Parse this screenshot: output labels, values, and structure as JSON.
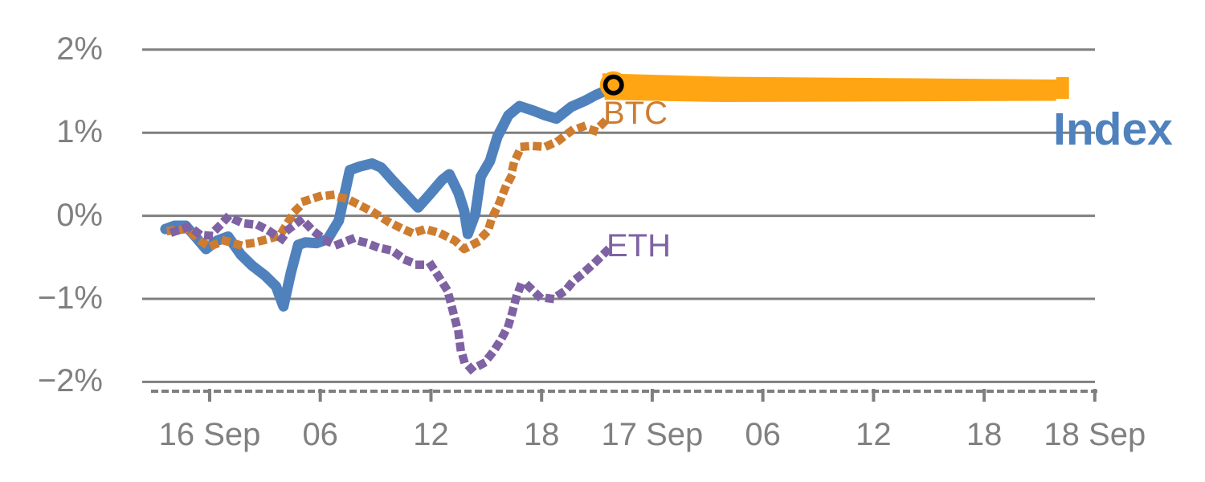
{
  "chart_data": {
    "type": "line",
    "title": "",
    "description": "Intraday percentage change of BTC, ETH and a crypto Index from late 15 Sep to 18 Sep; the Index last value is extended forward as a thick orange projection band ending near 18 Sep.",
    "x_axis": {
      "unit": "hours from 16 Sep 00:00",
      "tick_hours": [
        0,
        6,
        12,
        18,
        24,
        30,
        36,
        42,
        48
      ],
      "tick_labels": [
        "16 Sep",
        "06",
        "12",
        "18",
        "17 Sep",
        "06",
        "12",
        "18",
        "18 Sep"
      ],
      "axis_style": "dashed minor ticks with major tick marks"
    },
    "y_axis": {
      "unit": "percent",
      "tick_values": [
        2,
        1,
        0,
        -1,
        -2
      ],
      "tick_labels": [
        "2%",
        "1%",
        "0%",
        "−1%",
        "−2%"
      ],
      "range": [
        -2,
        2
      ],
      "grid": true
    },
    "axis_color": "#7F7F7F",
    "text_color": "#808080",
    "series": [
      {
        "name": "Index",
        "color": "#4F81BD",
        "line_style": "solid",
        "points": [
          [
            -2.4,
            -0.16
          ],
          [
            -1.9,
            -0.12
          ],
          [
            -1.3,
            -0.12
          ],
          [
            -0.7,
            -0.27
          ],
          [
            -0.2,
            -0.4
          ],
          [
            0.4,
            -0.3
          ],
          [
            1.0,
            -0.25
          ],
          [
            1.7,
            -0.47
          ],
          [
            2.3,
            -0.6
          ],
          [
            3.0,
            -0.72
          ],
          [
            3.6,
            -0.85
          ],
          [
            4.0,
            -1.09
          ],
          [
            4.4,
            -0.69
          ],
          [
            4.8,
            -0.35
          ],
          [
            5.2,
            -0.32
          ],
          [
            5.8,
            -0.33
          ],
          [
            6.4,
            -0.28
          ],
          [
            7.0,
            -0.06
          ],
          [
            7.6,
            0.55
          ],
          [
            8.1,
            0.59
          ],
          [
            8.8,
            0.63
          ],
          [
            9.3,
            0.58
          ],
          [
            9.9,
            0.43
          ],
          [
            10.5,
            0.29
          ],
          [
            11.0,
            0.17
          ],
          [
            11.3,
            0.1
          ],
          [
            11.9,
            0.25
          ],
          [
            12.6,
            0.43
          ],
          [
            13.0,
            0.5
          ],
          [
            13.5,
            0.27
          ],
          [
            13.8,
            0.06
          ],
          [
            14.0,
            -0.22
          ],
          [
            14.4,
            0.02
          ],
          [
            14.7,
            0.47
          ],
          [
            15.2,
            0.66
          ],
          [
            15.6,
            0.95
          ],
          [
            16.2,
            1.21
          ],
          [
            16.8,
            1.32
          ],
          [
            17.5,
            1.27
          ],
          [
            18.2,
            1.21
          ],
          [
            18.8,
            1.17
          ],
          [
            19.6,
            1.31
          ],
          [
            20.4,
            1.39
          ],
          [
            20.9,
            1.45
          ],
          [
            21.5,
            1.51
          ],
          [
            21.9,
            1.57
          ]
        ]
      },
      {
        "name": "BTC",
        "color": "#CE7C30",
        "line_style": "dotted",
        "points": [
          [
            -2.1,
            -0.18
          ],
          [
            -1.2,
            -0.16
          ],
          [
            -0.6,
            -0.29
          ],
          [
            0.0,
            -0.37
          ],
          [
            0.8,
            -0.3
          ],
          [
            1.6,
            -0.35
          ],
          [
            2.3,
            -0.33
          ],
          [
            3.0,
            -0.29
          ],
          [
            3.8,
            -0.24
          ],
          [
            4.6,
            0.05
          ],
          [
            5.2,
            0.18
          ],
          [
            5.9,
            0.23
          ],
          [
            6.6,
            0.25
          ],
          [
            7.5,
            0.2
          ],
          [
            8.2,
            0.12
          ],
          [
            8.9,
            0.04
          ],
          [
            9.6,
            -0.06
          ],
          [
            10.3,
            -0.14
          ],
          [
            11.0,
            -0.21
          ],
          [
            11.7,
            -0.16
          ],
          [
            12.5,
            -0.21
          ],
          [
            13.3,
            -0.3
          ],
          [
            13.8,
            -0.4
          ],
          [
            14.5,
            -0.32
          ],
          [
            15.1,
            -0.18
          ],
          [
            15.3,
            -0.03
          ],
          [
            15.7,
            0.15
          ],
          [
            16.0,
            0.32
          ],
          [
            16.3,
            0.45
          ],
          [
            16.5,
            0.64
          ],
          [
            16.9,
            0.83
          ],
          [
            17.5,
            0.84
          ],
          [
            18.2,
            0.83
          ],
          [
            18.9,
            0.9
          ],
          [
            19.6,
            1.02
          ],
          [
            20.2,
            1.07
          ],
          [
            20.9,
            1.02
          ],
          [
            21.4,
            1.13
          ]
        ]
      },
      {
        "name": "ETH",
        "color": "#7E62A3",
        "line_style": "dotted",
        "points": [
          [
            -1.9,
            -0.19
          ],
          [
            -1.1,
            -0.13
          ],
          [
            -0.5,
            -0.23
          ],
          [
            0.0,
            -0.24
          ],
          [
            0.5,
            -0.13
          ],
          [
            1.0,
            -0.01
          ],
          [
            1.8,
            -0.09
          ],
          [
            2.6,
            -0.11
          ],
          [
            3.2,
            -0.18
          ],
          [
            3.9,
            -0.28
          ],
          [
            4.3,
            -0.16
          ],
          [
            5.0,
            -0.04
          ],
          [
            5.6,
            -0.18
          ],
          [
            6.3,
            -0.3
          ],
          [
            6.9,
            -0.35
          ],
          [
            7.7,
            -0.28
          ],
          [
            8.4,
            -0.32
          ],
          [
            9.1,
            -0.38
          ],
          [
            9.9,
            -0.42
          ],
          [
            10.6,
            -0.53
          ],
          [
            11.3,
            -0.59
          ],
          [
            12.0,
            -0.59
          ],
          [
            12.5,
            -0.76
          ],
          [
            12.9,
            -0.9
          ],
          [
            13.1,
            -1.07
          ],
          [
            13.3,
            -1.24
          ],
          [
            13.5,
            -1.42
          ],
          [
            13.6,
            -1.59
          ],
          [
            13.8,
            -1.75
          ],
          [
            14.2,
            -1.85
          ],
          [
            14.9,
            -1.77
          ],
          [
            15.4,
            -1.63
          ],
          [
            15.8,
            -1.49
          ],
          [
            16.2,
            -1.32
          ],
          [
            16.4,
            -1.17
          ],
          [
            16.6,
            -1.0
          ],
          [
            16.9,
            -0.82
          ],
          [
            17.3,
            -0.85
          ],
          [
            17.9,
            -0.98
          ],
          [
            18.6,
            -1.0
          ],
          [
            19.3,
            -0.9
          ],
          [
            19.7,
            -0.79
          ],
          [
            20.1,
            -0.72
          ],
          [
            20.5,
            -0.64
          ],
          [
            21.0,
            -0.54
          ],
          [
            21.5,
            -0.43
          ]
        ]
      }
    ],
    "projection": {
      "series": "Index",
      "color": "#FFA513",
      "start_hour": 21.9,
      "end_hour": 46.6,
      "start_value": 1.555,
      "end_value": 1.51,
      "thickness_px": 33,
      "marker": {
        "hour": 21.9,
        "value": 1.575,
        "fill": "#FFA513",
        "ring_color": "#000000"
      }
    },
    "legend_position": "inline labels next to line ends"
  },
  "series_labels": {
    "btc": "BTC",
    "eth": "ETH",
    "index": "Index"
  }
}
